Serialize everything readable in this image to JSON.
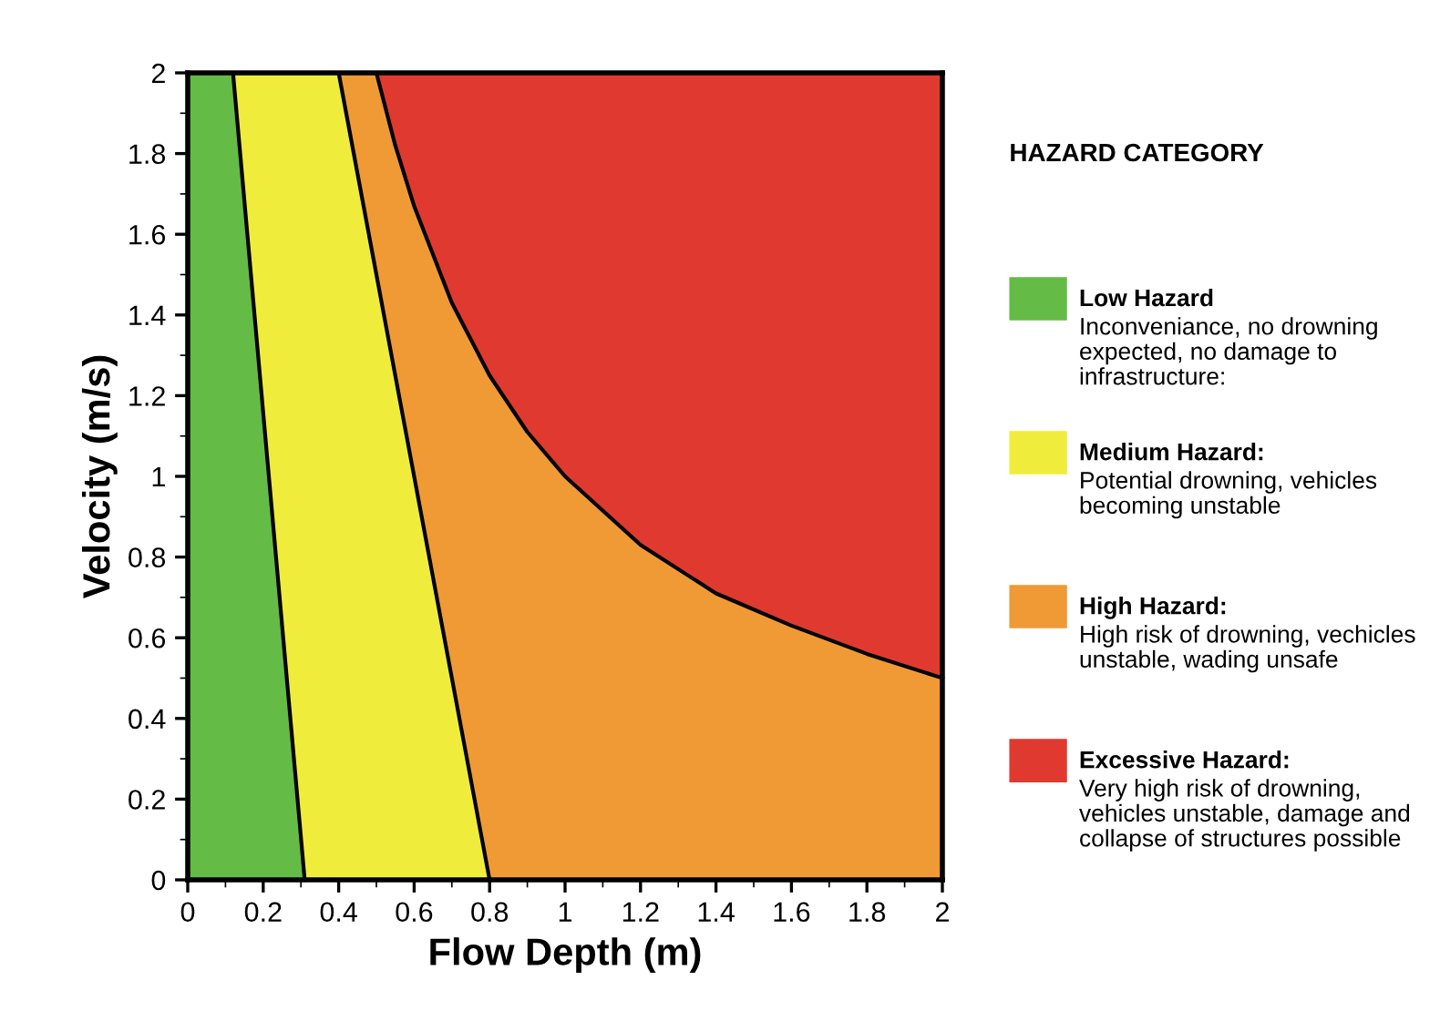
{
  "chart_data": {
    "type": "area",
    "xlabel": "Flow Depth (m)",
    "ylabel": "Velocity (m/s)",
    "legend_title": "HAZARD CATEGORY",
    "legend": "right",
    "xlim": [
      0,
      2
    ],
    "ylim": [
      0,
      2
    ],
    "xticks": [
      0,
      0.2,
      0.4,
      0.6,
      0.8,
      1,
      1.2,
      1.4,
      1.6,
      1.8,
      2
    ],
    "yticks": [
      0,
      0.2,
      0.4,
      0.6,
      0.8,
      1,
      1.2,
      1.4,
      1.6,
      1.8,
      2
    ],
    "series": [
      {
        "name": "Low Hazard",
        "color": "#64bb46",
        "x": [
          0,
          0.12,
          0.31
        ],
        "values": [
          2,
          2,
          0
        ]
      },
      {
        "name": "Medium Hazard:",
        "color": "#f0ec3c",
        "x": [
          0,
          0.4,
          0.8
        ],
        "values": [
          2,
          2,
          0
        ]
      },
      {
        "name": "High Hazard:",
        "color": "#ef9a35",
        "x": [
          0,
          0.5,
          0.55,
          0.6,
          0.7,
          0.8,
          0.9,
          1.0,
          1.2,
          1.4,
          1.6,
          1.8,
          2.0
        ],
        "values": [
          2,
          2,
          1.82,
          1.67,
          1.43,
          1.25,
          1.11,
          1.0,
          0.83,
          0.71,
          0.63,
          0.56,
          0.5
        ]
      },
      {
        "name": "Excessive Hazard:",
        "color": "#e03a30",
        "x": [
          0.5,
          2
        ],
        "values": [
          2,
          2
        ]
      }
    ],
    "annotations": [
      "Inconveniance, no drowning\nexpected, no damage to\ninfrastructure:",
      "Potential drowning, vehicles\nbecoming unstable",
      "High risk of drowning, vechicles\nunstable, wading unsafe",
      "Very high risk of drowning,\nvehicles unstable, damage and\ncollapse of structures possible"
    ]
  }
}
